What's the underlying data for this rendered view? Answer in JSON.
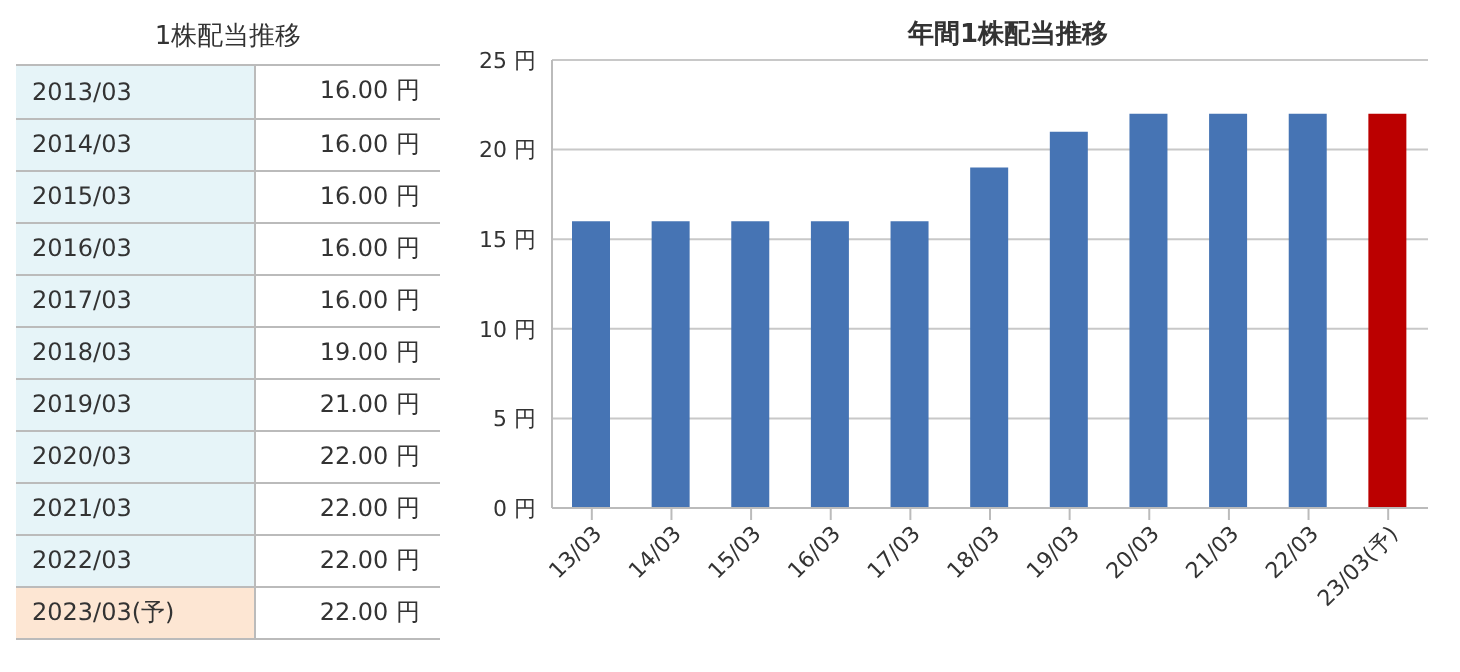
{
  "chart_data": [
    {
      "type": "other",
      "title": "1株配当推移",
      "categories": [
        "2013/03",
        "2014/03",
        "2015/03",
        "2016/03",
        "2017/03",
        "2018/03",
        "2019/03",
        "2020/03",
        "2021/03",
        "2022/03",
        "2023/03(予)"
      ],
      "values": [
        16,
        16,
        16,
        16,
        16,
        19,
        21,
        22,
        22,
        22,
        22
      ],
      "value_labels": [
        "16.00 円",
        "16.00 円",
        "16.00 円",
        "16.00 円",
        "16.00 円",
        "19.00 円",
        "21.00 円",
        "22.00 円",
        "22.00 円",
        "22.00 円",
        "22.00 円"
      ],
      "colors": [
        "#e6f4f8",
        "#e6f4f8",
        "#e6f4f8",
        "#e6f4f8",
        "#e6f4f8",
        "#e6f4f8",
        "#e6f4f8",
        "#e6f4f8",
        "#e6f4f8",
        "#e6f4f8",
        "#fde6d3"
      ]
    },
    {
      "type": "bar",
      "title": "年間1株配当推移",
      "categories": [
        "13/03",
        "14/03",
        "15/03",
        "16/03",
        "17/03",
        "18/03",
        "19/03",
        "20/03",
        "21/03",
        "22/03",
        "23/03(予)"
      ],
      "values": [
        16,
        16,
        16,
        16,
        16,
        19,
        21,
        22,
        22,
        22,
        22
      ],
      "colors": [
        "#4674b4",
        "#4674b4",
        "#4674b4",
        "#4674b4",
        "#4674b4",
        "#4674b4",
        "#4674b4",
        "#4674b4",
        "#4674b4",
        "#4674b4",
        "#bb0000"
      ],
      "ylim": [
        0,
        25
      ],
      "yticks": [
        {
          "value": 0,
          "label": "0 円"
        },
        {
          "value": 5,
          "label": "5 円"
        },
        {
          "value": 10,
          "label": "10 円"
        },
        {
          "value": 15,
          "label": "15 円"
        },
        {
          "value": 20,
          "label": "20 円"
        },
        {
          "value": 25,
          "label": "25 円"
        }
      ],
      "grid": "y"
    }
  ]
}
